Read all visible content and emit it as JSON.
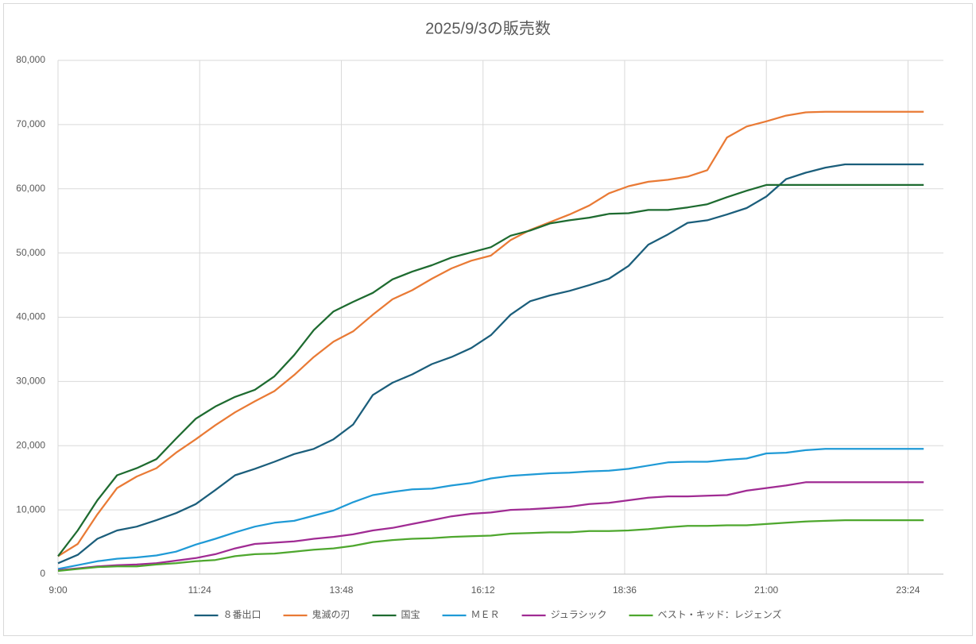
{
  "chart_data": {
    "type": "line",
    "title": "2025/9/3の販売数",
    "x": [
      "9:00",
      "9:20",
      "9:40",
      "10:00",
      "10:20",
      "10:40",
      "11:00",
      "11:20",
      "11:40",
      "12:00",
      "12:20",
      "12:40",
      "13:00",
      "13:20",
      "13:40",
      "14:00",
      "14:20",
      "14:40",
      "15:00",
      "15:20",
      "15:40",
      "16:00",
      "16:20",
      "16:40",
      "17:00",
      "17:20",
      "17:40",
      "18:00",
      "18:20",
      "18:40",
      "19:00",
      "19:20",
      "19:40",
      "20:00",
      "20:20",
      "20:40",
      "21:00",
      "21:20",
      "21:40",
      "22:00",
      "22:20",
      "22:40",
      "23:00",
      "23:20",
      "23:40"
    ],
    "xlim": [
      "9:00",
      "24:00"
    ],
    "xticks": [
      "9:00",
      "11:24",
      "13:48",
      "16:12",
      "18:36",
      "21:00",
      "23:24"
    ],
    "ylim": [
      0,
      80000
    ],
    "yticks": [
      0,
      {
        "value": 10000,
        "label": "10,000"
      },
      {
        "value": 20000,
        "label": "20,000"
      },
      {
        "value": 30000,
        "label": "30,000"
      },
      {
        "value": 40000,
        "label": "40,000"
      },
      {
        "value": 50000,
        "label": "50,000"
      },
      {
        "value": 60000,
        "label": "60,000"
      },
      {
        "value": 70000,
        "label": "70,000"
      },
      {
        "value": 80000,
        "label": "80,000"
      }
    ],
    "grid": true,
    "legend": "bottom",
    "series": [
      {
        "name": "８番出口",
        "color": "#1b5e7b",
        "values": [
          1700,
          3000,
          5500,
          6800,
          7400,
          8400,
          9500,
          10900,
          13100,
          15400,
          16400,
          17500,
          18700,
          19500,
          21000,
          23300,
          27900,
          29800,
          31100,
          32700,
          33800,
          35200,
          37200,
          40400,
          42500,
          43400,
          44100,
          45000,
          46000,
          48000,
          51300,
          52900,
          54700,
          55100,
          56000,
          57000,
          58800,
          61500,
          62500,
          63300,
          63800,
          63800,
          63800,
          63800,
          63800
        ]
      },
      {
        "name": "鬼滅の刃",
        "color": "#e97a35",
        "values": [
          2800,
          4700,
          9300,
          13400,
          15200,
          16500,
          18900,
          21000,
          23200,
          25200,
          26900,
          28500,
          31000,
          33800,
          36200,
          37800,
          40400,
          42800,
          44200,
          46000,
          47600,
          48800,
          49600,
          52000,
          53600,
          54800,
          56000,
          57400,
          59300,
          60400,
          61100,
          61400,
          61900,
          62900,
          68000,
          69700,
          70500,
          71400,
          71900,
          72000,
          72000,
          72000,
          72000,
          72000,
          72000
        ]
      },
      {
        "name": "国宝",
        "color": "#1e6b30",
        "values": [
          2800,
          6800,
          11500,
          15400,
          16500,
          17900,
          21100,
          24200,
          26100,
          27600,
          28700,
          30800,
          34100,
          38000,
          40900,
          42400,
          43800,
          45900,
          47100,
          48100,
          49300,
          50100,
          50900,
          52700,
          53500,
          54600,
          55100,
          55500,
          56100,
          56200,
          56700,
          56700,
          57100,
          57600,
          58700,
          59700,
          60600,
          60600,
          60600,
          60600,
          60600,
          60600,
          60600,
          60600,
          60600
        ]
      },
      {
        "name": "ＭＥＲ",
        "color": "#1f9ad6",
        "values": [
          800,
          1400,
          2000,
          2400,
          2600,
          2900,
          3500,
          4600,
          5500,
          6500,
          7400,
          8000,
          8300,
          9100,
          9900,
          11200,
          12300,
          12800,
          13200,
          13300,
          13800,
          14200,
          14900,
          15300,
          15500,
          15700,
          15800,
          16000,
          16100,
          16400,
          16900,
          17400,
          17500,
          17500,
          17800,
          18000,
          18800,
          18900,
          19300,
          19500,
          19500,
          19500,
          19500,
          19500,
          19500
        ]
      },
      {
        "name": "ジュラシック",
        "color": "#a02b93",
        "values": [
          600,
          900,
          1200,
          1400,
          1500,
          1700,
          2100,
          2500,
          3100,
          4000,
          4700,
          4900,
          5100,
          5500,
          5800,
          6200,
          6800,
          7200,
          7800,
          8400,
          9000,
          9400,
          9600,
          10000,
          10100,
          10300,
          10500,
          10900,
          11100,
          11500,
          11900,
          12100,
          12100,
          12200,
          12300,
          13000,
          13400,
          13800,
          14300,
          14300,
          14300,
          14300,
          14300,
          14300,
          14300
        ]
      },
      {
        "name": "ベスト・キッド：レジェンズ",
        "color": "#4ea72e",
        "values": [
          500,
          800,
          1100,
          1200,
          1200,
          1500,
          1700,
          2000,
          2200,
          2800,
          3100,
          3200,
          3500,
          3800,
          4000,
          4400,
          5000,
          5300,
          5500,
          5600,
          5800,
          5900,
          6000,
          6300,
          6400,
          6500,
          6500,
          6700,
          6700,
          6800,
          7000,
          7300,
          7500,
          7500,
          7600,
          7600,
          7800,
          8000,
          8200,
          8300,
          8400,
          8400,
          8400,
          8400,
          8400
        ]
      }
    ]
  }
}
